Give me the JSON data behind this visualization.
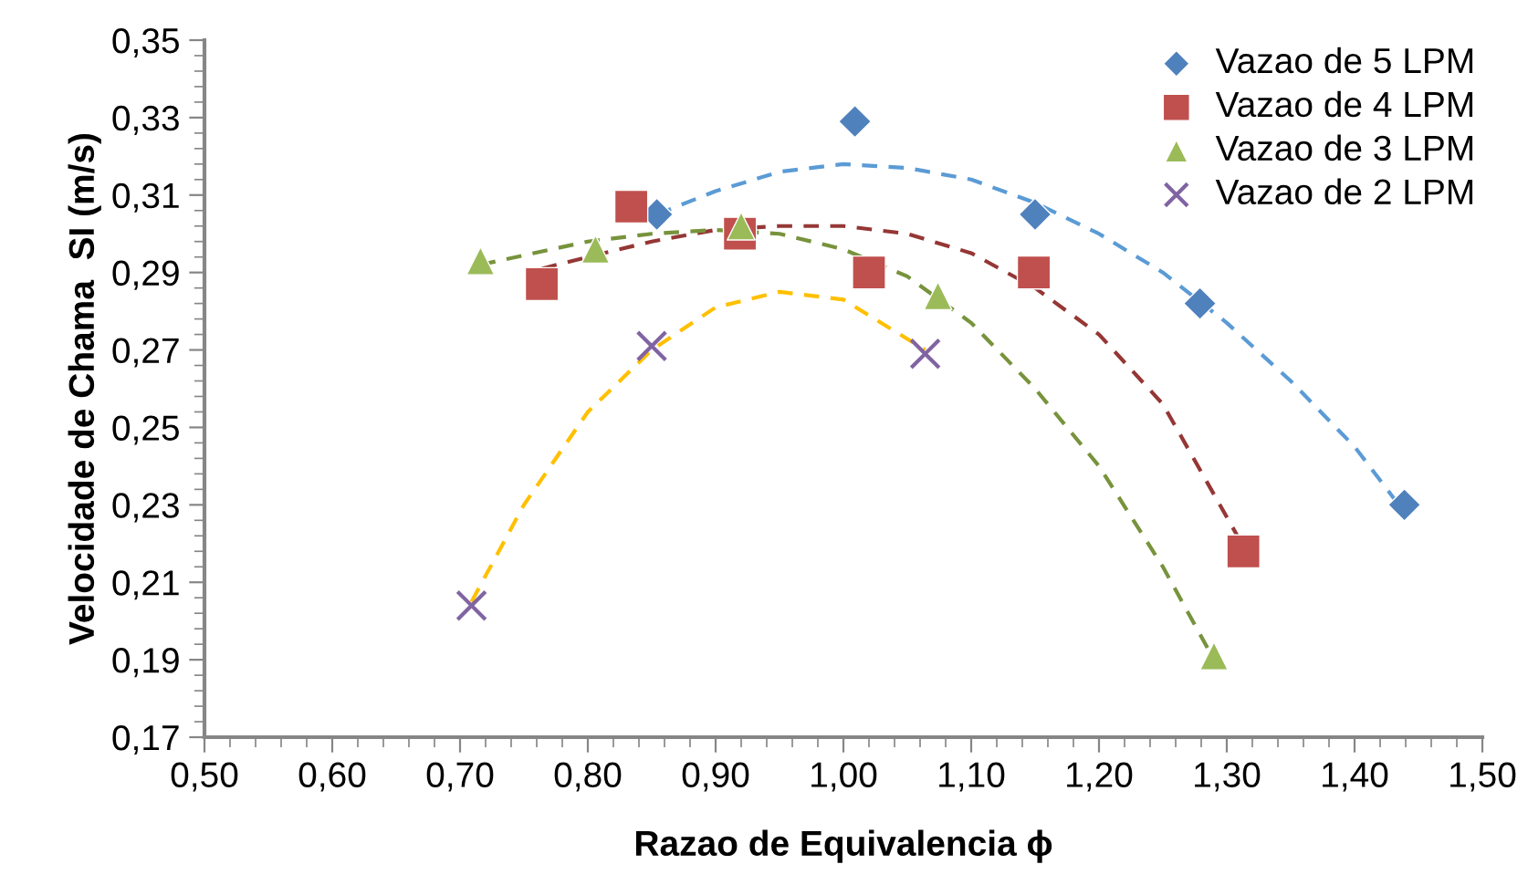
{
  "chart_data": {
    "type": "scatter",
    "xlabel": "Razao de Equivalencia ϕ",
    "ylabel": "Velocidade de Chama  SI (m/s)",
    "xlim": [
      0.5,
      1.5
    ],
    "xticks": [
      {
        "value": 0.5,
        "label": "0,50"
      },
      {
        "value": 0.6,
        "label": "0,60"
      },
      {
        "value": 0.7,
        "label": "0,70"
      },
      {
        "value": 0.8,
        "label": "0,80"
      },
      {
        "value": 0.9,
        "label": "0,90"
      },
      {
        "value": 1.0,
        "label": "1,00"
      },
      {
        "value": 1.1,
        "label": "1,10"
      },
      {
        "value": 1.2,
        "label": "1,20"
      },
      {
        "value": 1.3,
        "label": "1,30"
      },
      {
        "value": 1.4,
        "label": "1,40"
      },
      {
        "value": 1.5,
        "label": "1,50"
      }
    ],
    "ylim": [
      0.17,
      0.35
    ],
    "yticks": [
      {
        "value": 0.17,
        "label": "0,17"
      },
      {
        "value": 0.19,
        "label": "0,19"
      },
      {
        "value": 0.21,
        "label": "0,21"
      },
      {
        "value": 0.23,
        "label": "0,23"
      },
      {
        "value": 0.25,
        "label": "0,25"
      },
      {
        "value": 0.27,
        "label": "0,27"
      },
      {
        "value": 0.29,
        "label": "0,29"
      },
      {
        "value": 0.31,
        "label": "0,31"
      },
      {
        "value": 0.33,
        "label": "0,33"
      },
      {
        "value": 0.35,
        "label": "0,35"
      }
    ],
    "legend": "top right",
    "grid": false,
    "series": [
      {
        "type": "line",
        "line_style": "dashed",
        "marker": "none",
        "color": "#5b9bd5",
        "x": [
          0.854,
          0.9,
          0.95,
          1.0,
          1.05,
          1.1,
          1.15,
          1.2,
          1.25,
          1.3,
          1.35,
          1.4,
          1.437
        ],
        "values": [
          0.305,
          0.311,
          0.316,
          0.318,
          0.317,
          0.314,
          0.308,
          0.3,
          0.29,
          0.277,
          0.262,
          0.245,
          0.229
        ]
      },
      {
        "type": "line",
        "line_style": "dashed",
        "marker": "none",
        "color": "#953735",
        "x": [
          0.764,
          0.8,
          0.85,
          0.9,
          0.95,
          1.0,
          1.05,
          1.1,
          1.15,
          1.2,
          1.25,
          1.31
        ],
        "values": [
          0.291,
          0.294,
          0.298,
          0.301,
          0.302,
          0.302,
          0.3,
          0.295,
          0.286,
          0.274,
          0.256,
          0.221
        ]
      },
      {
        "type": "line",
        "line_style": "dashed",
        "marker": "none",
        "color": "#77933c",
        "x": [
          0.716,
          0.8,
          0.85,
          0.9,
          0.95,
          1.0,
          1.05,
          1.1,
          1.15,
          1.2,
          1.25,
          1.29
        ],
        "values": [
          0.292,
          0.298,
          0.3,
          0.301,
          0.3,
          0.296,
          0.289,
          0.277,
          0.26,
          0.24,
          0.214,
          0.19
        ]
      },
      {
        "type": "line",
        "line_style": "dashed",
        "marker": "none",
        "color": "#ffc000",
        "x": [
          0.709,
          0.75,
          0.8,
          0.85,
          0.9,
          0.95,
          1.0,
          1.064
        ],
        "values": [
          0.205,
          0.23,
          0.254,
          0.27,
          0.281,
          0.285,
          0.283,
          0.27
        ]
      },
      {
        "name": "Vazao de 5 LPM",
        "marker": "diamond",
        "color": "#4f81bd",
        "x": [
          0.854,
          0.93,
          1.009,
          1.15,
          1.279,
          1.439
        ],
        "values": [
          0.305,
          null,
          0.329,
          0.305,
          0.282,
          0.23
        ]
      },
      {
        "name": "Vazao de 4 LPM",
        "marker": "square",
        "color": "#c0504d",
        "x": [
          0.764,
          0.834,
          0.919,
          1.02,
          1.149,
          1.313
        ],
        "values": [
          0.287,
          0.307,
          0.3,
          0.29,
          0.29,
          0.218
        ]
      },
      {
        "name": "Vazao de 3 LPM",
        "marker": "triangle",
        "color": "#9bbb59",
        "x": [
          0.716,
          0.806,
          0.92,
          1.074,
          1.29
        ],
        "values": [
          0.293,
          0.296,
          0.302,
          0.284,
          0.191
        ]
      },
      {
        "name": "Vazao de 2 LPM",
        "marker": "cross",
        "color": "#8064a2",
        "x": [
          0.709,
          0.85,
          1.064
        ],
        "values": [
          0.204,
          0.271,
          0.269
        ]
      }
    ]
  }
}
